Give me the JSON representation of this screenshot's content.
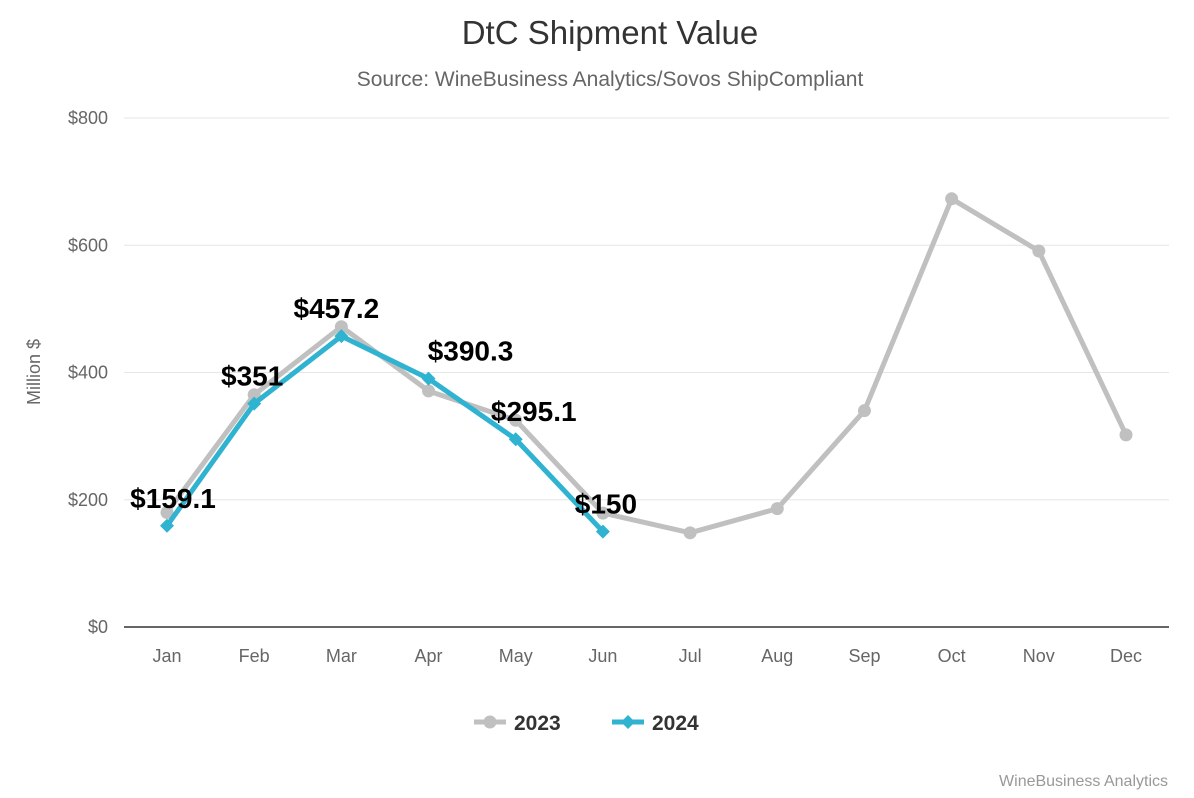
{
  "chart_data": {
    "type": "line",
    "title": "DtC Shipment Value",
    "subtitle": "Source: WineBusiness Analytics/Sovos ShipCompliant",
    "ylabel": "Million $",
    "xlabel": "",
    "ylim": [
      0,
      800
    ],
    "yticks": [
      "$0",
      "$200",
      "$400",
      "$600",
      "$800"
    ],
    "ytick_values": [
      0,
      200,
      400,
      600,
      800
    ],
    "grid": true,
    "legend_position": "bottom",
    "categories": [
      "Jan",
      "Feb",
      "Mar",
      "Apr",
      "May",
      "Jun",
      "Jul",
      "Aug",
      "Sep",
      "Oct",
      "Nov",
      "Dec"
    ],
    "series": [
      {
        "name": "2023",
        "color": "#c0c0c0",
        "marker": "circle",
        "values": [
          180,
          365,
          472,
          371,
          325,
          179,
          148,
          186,
          340,
          673,
          591,
          302
        ],
        "labels": []
      },
      {
        "name": "2024",
        "color": "#2fb3d1",
        "marker": "diamond",
        "values": [
          159.1,
          351,
          457.2,
          390.3,
          295.1,
          150,
          null,
          null,
          null,
          null,
          null,
          null
        ],
        "labels": [
          "$159.1",
          "$351",
          "$457.2",
          "$390.3",
          "$295.1",
          "$150"
        ]
      }
    ],
    "credit": "WineBusiness Analytics"
  }
}
